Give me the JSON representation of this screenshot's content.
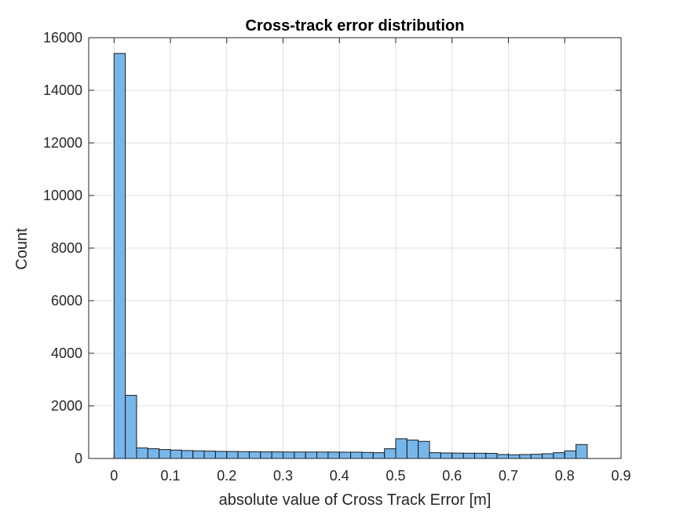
{
  "chart_data": {
    "type": "bar",
    "title": "Cross-track error distribution",
    "xlabel": "absolute value of Cross Track Error  [m]",
    "ylabel": "Count",
    "xlim": [
      -0.045,
      0.9
    ],
    "ylim": [
      0,
      16000
    ],
    "xticks": [
      "0",
      "0.1",
      "0.2",
      "0.3",
      "0.4",
      "0.5",
      "0.6",
      "0.7",
      "0.8",
      "0.9"
    ],
    "xtick_values": [
      0,
      0.1,
      0.2,
      0.3,
      0.4,
      0.5,
      0.6,
      0.7,
      0.8,
      0.9
    ],
    "yticks": [
      "0",
      "2000",
      "4000",
      "6000",
      "8000",
      "10000",
      "12000",
      "14000",
      "16000"
    ],
    "ytick_values": [
      0,
      2000,
      4000,
      6000,
      8000,
      10000,
      12000,
      14000,
      16000
    ],
    "grid": true,
    "bin_start": 0,
    "bin_width": 0.02,
    "values": [
      15400,
      2400,
      400,
      370,
      340,
      320,
      300,
      290,
      280,
      270,
      265,
      260,
      255,
      250,
      250,
      245,
      245,
      245,
      245,
      245,
      240,
      240,
      230,
      220,
      370,
      750,
      700,
      650,
      220,
      210,
      205,
      200,
      200,
      195,
      150,
      140,
      150,
      160,
      180,
      220,
      290,
      530
    ],
    "colors": {
      "bar_fill": "#77b6ea",
      "bar_edge": "#1a1a1a"
    }
  }
}
